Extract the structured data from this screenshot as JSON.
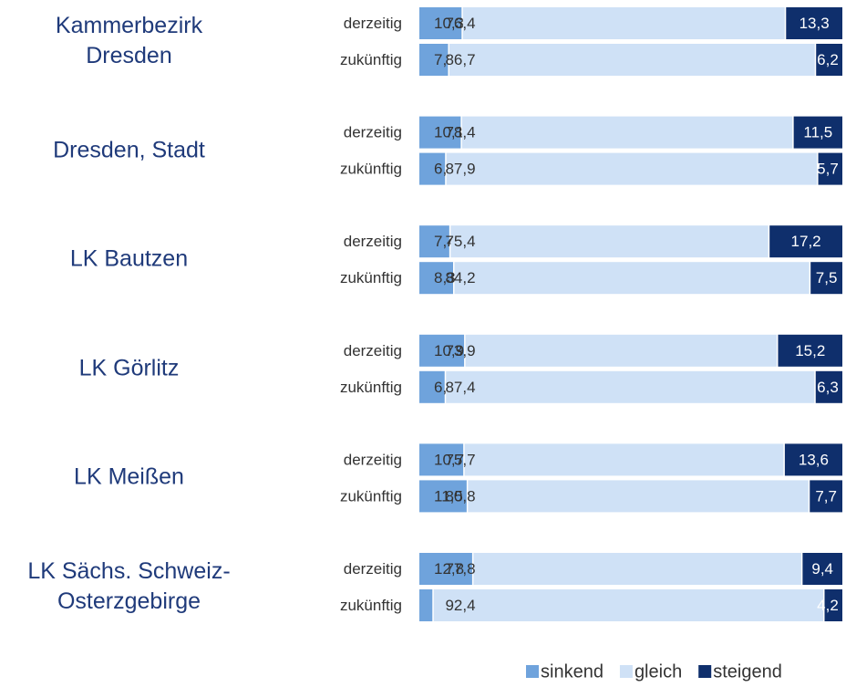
{
  "chart_data": {
    "type": "stacked-bar-horizontal",
    "groups": [
      "Kammerbezirk Dresden",
      "Dresden, Stadt",
      "LK Bautzen",
      "LK Görlitz",
      "LK Meißen",
      "LK Sächs. Schweiz-Osterzgebirge"
    ],
    "categories": [
      "derzeitig",
      "zukünftig",
      "derzeitig",
      "zukünftig",
      "derzeitig",
      "zukünftig",
      "derzeitig",
      "zukünftig",
      "derzeitig",
      "zukünftig",
      "derzeitig",
      "zukünftig"
    ],
    "xlim": [
      0,
      100
    ],
    "legend": "bottom",
    "series": [
      {
        "name": "sinkend",
        "color": "#6fa3dc",
        "text_color": "#333333",
        "values": [
          10.3,
          7.1,
          10.1,
          6.4,
          7.4,
          8.3,
          10.9,
          6.3,
          10.7,
          11.5,
          12.8,
          3.4
        ],
        "value_labels": [
          "10,3",
          "7,1",
          "10,1",
          "6,4",
          "7,4",
          "8,3",
          "10,9",
          "6,3",
          "10,7",
          "11,5",
          "12,8",
          "3,4"
        ]
      },
      {
        "name": "gleich",
        "color": "#cfe1f6",
        "text_color": "#333333",
        "values": [
          76.4,
          86.7,
          78.4,
          87.9,
          75.4,
          84.2,
          73.9,
          87.4,
          75.7,
          80.8,
          77.8,
          92.4
        ],
        "value_labels": [
          "76,4",
          "86,7",
          "78,4",
          "87,9",
          "75,4",
          "84,2",
          "73,9",
          "87,4",
          "75,7",
          "80,8",
          "77,8",
          "92,4"
        ]
      },
      {
        "name": "steigend",
        "color": "#0f2f6c",
        "text_color": "#ffffff",
        "values": [
          13.3,
          6.2,
          11.5,
          5.7,
          17.2,
          7.5,
          15.2,
          6.3,
          13.6,
          7.7,
          9.4,
          4.2
        ],
        "value_labels": [
          "13,3",
          "6,2",
          "11,5",
          "5,7",
          "17,2",
          "7,5",
          "15,2",
          "6,3",
          "13,6",
          "7,7",
          "9,4",
          "4,2"
        ]
      }
    ]
  }
}
